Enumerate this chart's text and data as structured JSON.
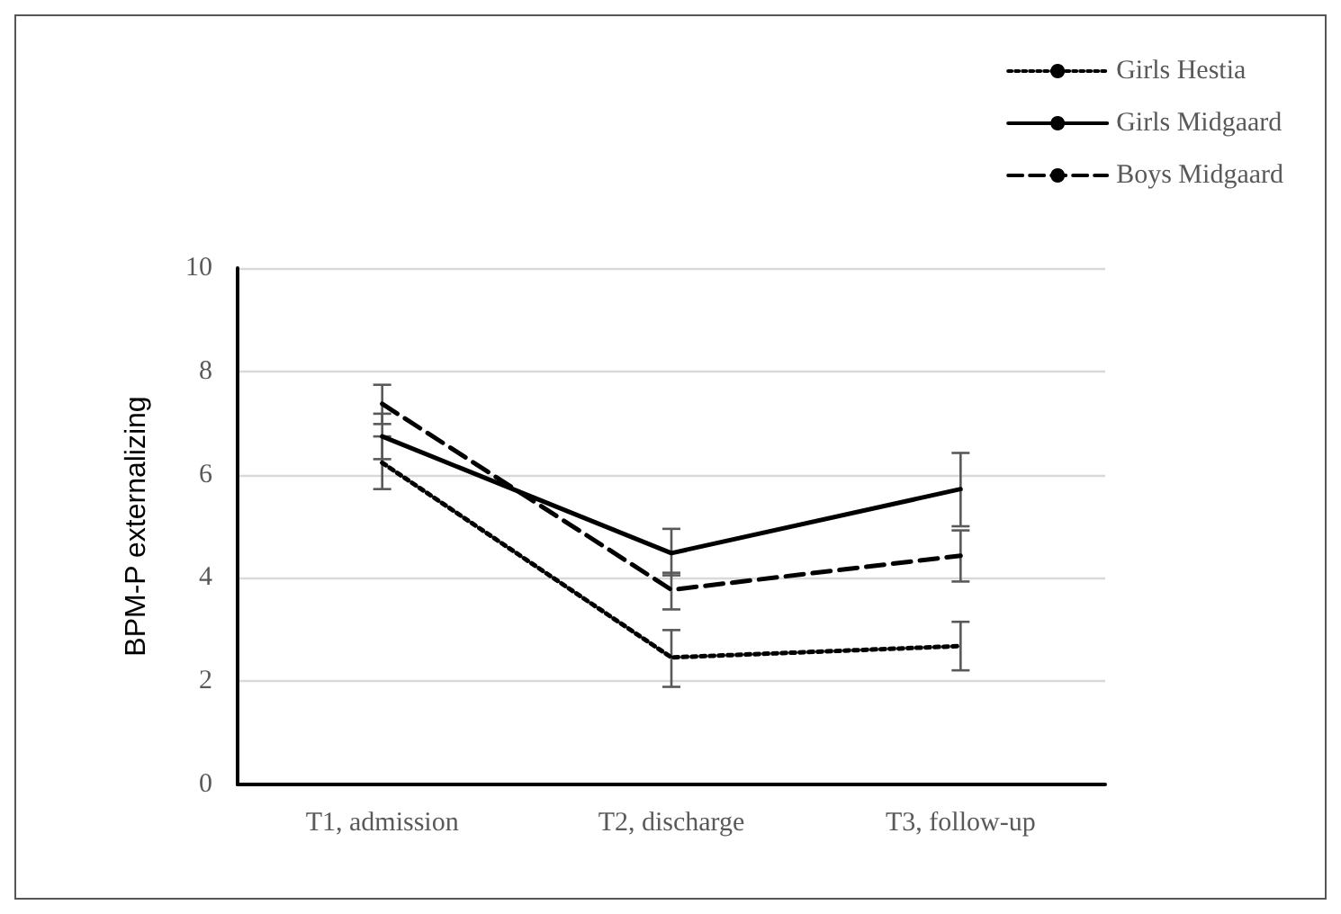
{
  "chart_data": {
    "type": "line",
    "ylabel": "BPM-P externalizing",
    "categories": [
      "T1, admission",
      "T2, discharge",
      "T3, follow-up"
    ],
    "series": [
      {
        "name": "Girls Hestia",
        "color": "#000000",
        "line_style": "dotted",
        "values": [
          6.23,
          2.46,
          2.68
        ],
        "errors": [
          [
            5.72,
            6.74
          ],
          [
            1.89,
            2.99
          ],
          [
            2.21,
            3.15
          ]
        ]
      },
      {
        "name": "Girls Midgaard",
        "color": "#000000",
        "line_style": "solid",
        "values": [
          6.74,
          4.48,
          5.72
        ],
        "errors": [
          [
            6.3,
            7.18
          ],
          [
            4.05,
            4.95
          ],
          [
            5.0,
            6.42
          ]
        ]
      },
      {
        "name": "Boys Midgaard",
        "color": "#000000",
        "line_style": "dashed",
        "values": [
          7.37,
          3.77,
          4.43
        ],
        "errors": [
          [
            6.98,
            7.74
          ],
          [
            3.39,
            4.1
          ],
          [
            3.93,
            4.92
          ]
        ]
      }
    ],
    "ylim": [
      0,
      10
    ],
    "yticks": [
      0,
      2,
      4,
      6,
      8,
      10
    ],
    "grid": "y",
    "legend": "top right",
    "marker": "none"
  }
}
